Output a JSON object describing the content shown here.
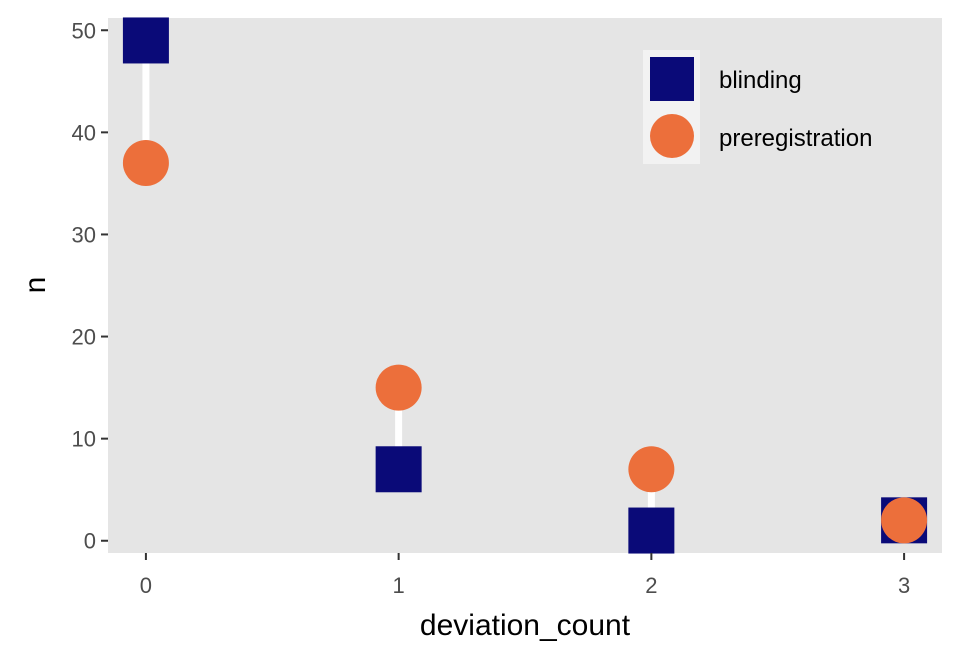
{
  "chart_data": {
    "type": "scatter",
    "xlabel": "deviation_count",
    "ylabel": "n",
    "x_ticks": [
      "0",
      "1",
      "2",
      "3"
    ],
    "y_ticks": [
      "0",
      "10",
      "20",
      "30",
      "40",
      "50"
    ],
    "xlim": [
      -0.15,
      3.15
    ],
    "ylim": [
      -1.2,
      51.2
    ],
    "grid": false,
    "legend_position": "top-right",
    "series": [
      {
        "name": "blinding",
        "marker": "square",
        "color": "#0a0a78",
        "x": [
          0,
          1,
          2,
          3
        ],
        "values": [
          49,
          7,
          1,
          2
        ]
      },
      {
        "name": "preregistration",
        "marker": "circle",
        "color": "#ec6f3b",
        "x": [
          0,
          1,
          2,
          3
        ],
        "values": [
          37,
          15,
          7,
          2
        ]
      }
    ],
    "connector_color": "#ffffff",
    "panel_background": "#e5e5e5"
  }
}
